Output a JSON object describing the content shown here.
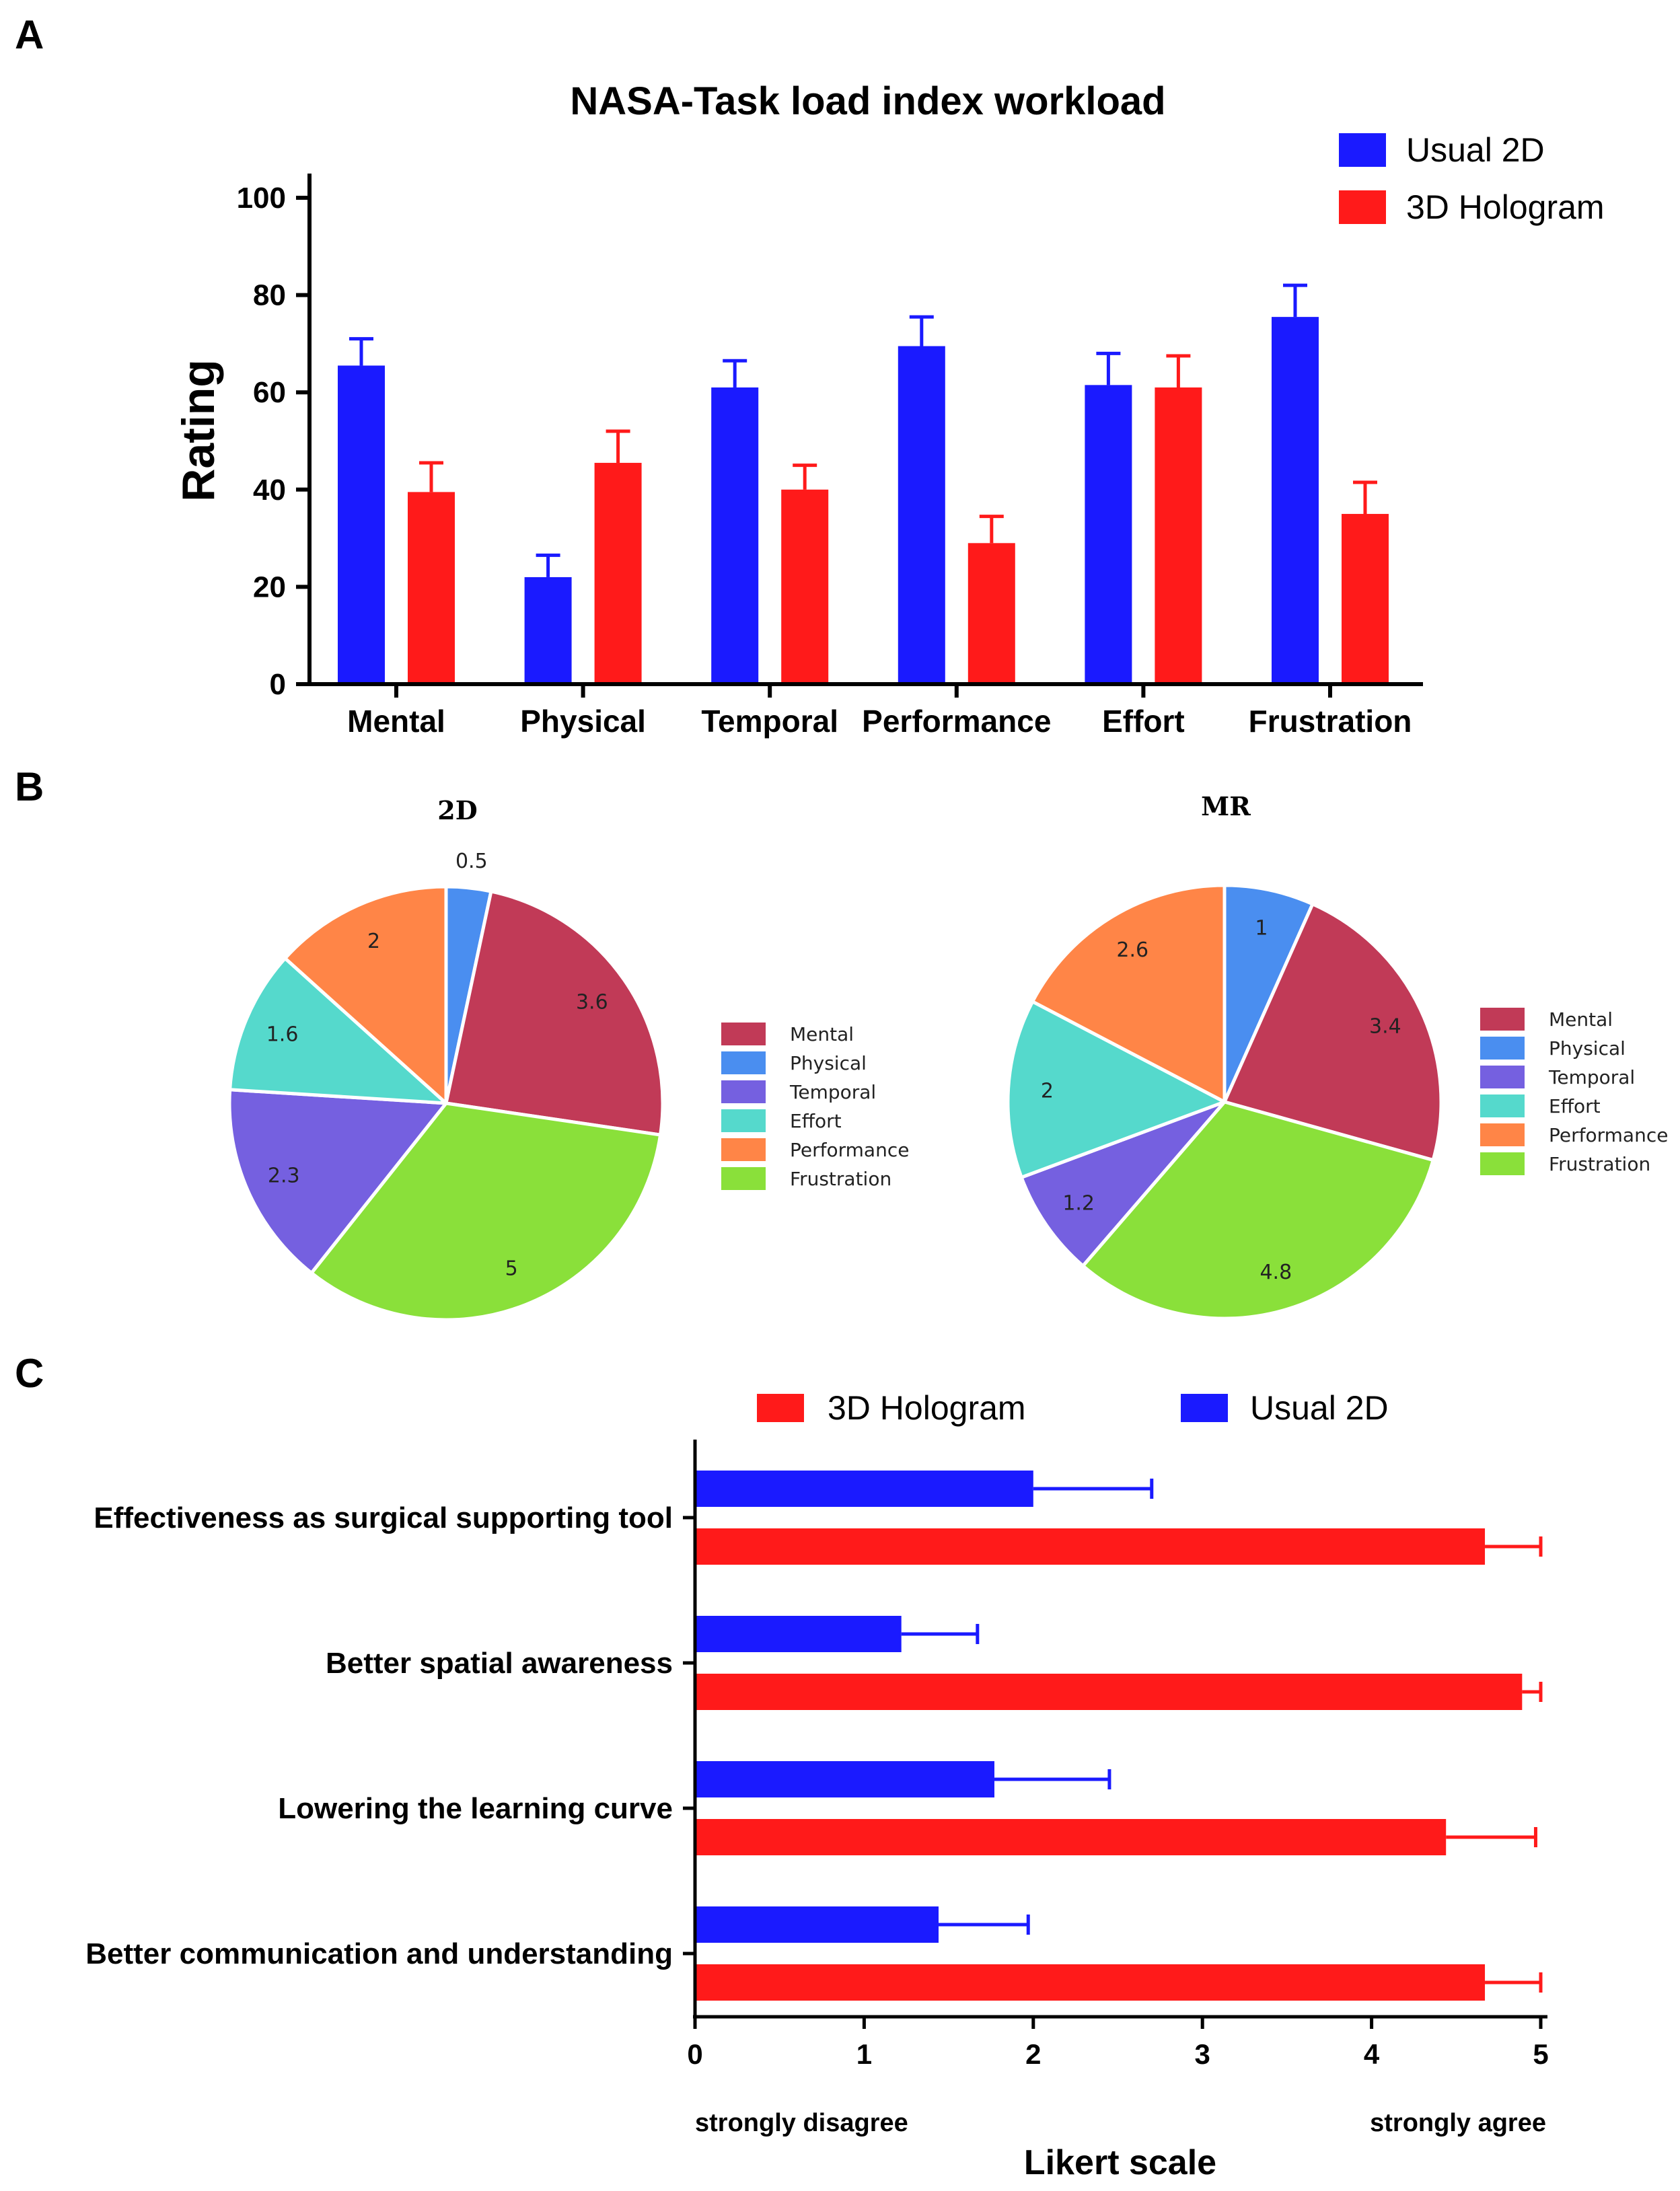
{
  "panels": {
    "a": "A",
    "b": "B",
    "c": "C"
  },
  "colors": {
    "usual_2d": "#1a1aff",
    "hologram_3d": "#ff1a1a",
    "pie_mental": "#c13a57",
    "pie_physical": "#4a8ef0",
    "pie_temporal": "#7560e0",
    "pie_effort": "#55d9cc",
    "pie_performance": "#ff8547",
    "pie_frustration": "#8ae03a"
  },
  "chart_data": [
    {
      "type": "bar",
      "title": "NASA-Task load index workload",
      "ylabel": "Rating",
      "xlabel": "",
      "ylim": [
        0,
        100
      ],
      "yticks": [
        "0",
        "20",
        "40",
        "60",
        "80",
        "100"
      ],
      "categories": [
        "Mental",
        "Physical",
        "Temporal",
        "Performance",
        "Effort",
        "Frustration"
      ],
      "legend_position": "top-right",
      "series": [
        {
          "name": "Usual 2D",
          "values": [
            65.5,
            22,
            61,
            69.5,
            61.5,
            75.5
          ],
          "errors": [
            5.5,
            4.5,
            5.5,
            6,
            6.5,
            6.5
          ]
        },
        {
          "name": "3D Hologram",
          "values": [
            39.5,
            45.5,
            40,
            29,
            61,
            35
          ],
          "errors": [
            6,
            6.5,
            5,
            5.5,
            6.5,
            6.5
          ]
        }
      ]
    },
    {
      "type": "pie",
      "title": "2D",
      "categories": [
        "Mental",
        "Physical",
        "Temporal",
        "Effort",
        "Performance",
        "Frustration"
      ],
      "values": [
        3.6,
        0.5,
        2.3,
        1.6,
        2,
        5
      ],
      "labels": [
        "3.6",
        "0.5",
        "2.3",
        "1.6",
        "2",
        "5"
      ],
      "legend_position": "right"
    },
    {
      "type": "pie",
      "title": "MR",
      "categories": [
        "Mental",
        "Physical",
        "Temporal",
        "Effort",
        "Performance",
        "Frustration"
      ],
      "values": [
        3.4,
        1,
        1.2,
        2,
        2.6,
        4.8
      ],
      "labels": [
        "3.4",
        "1",
        "1.2",
        "2",
        "2.6",
        "4.8"
      ],
      "legend_position": "right"
    },
    {
      "type": "bar",
      "orientation": "horizontal",
      "title": "",
      "xlabel": "Likert scale",
      "ylabel": "",
      "xlim": [
        0,
        5
      ],
      "xticks": [
        "0",
        "1",
        "2",
        "3",
        "4",
        "5"
      ],
      "x_end_labels": {
        "low": "strongly disagree",
        "high": "strongly agree"
      },
      "categories": [
        "Effectiveness as surgical supporting tool",
        "Better spatial awareness",
        "Lowering the learning curve",
        "Better communication and understanding"
      ],
      "legend_position": "top",
      "legend_order": [
        "3D Hologram",
        "Usual 2D"
      ],
      "series": [
        {
          "name": "Usual 2D",
          "values": [
            2.0,
            1.22,
            1.77,
            1.44
          ],
          "errors": [
            0.7,
            0.45,
            0.68,
            0.53
          ]
        },
        {
          "name": "3D Hologram",
          "values": [
            4.67,
            4.89,
            4.44,
            4.67
          ],
          "errors": [
            0.33,
            0.11,
            0.53,
            0.33
          ]
        }
      ]
    }
  ]
}
